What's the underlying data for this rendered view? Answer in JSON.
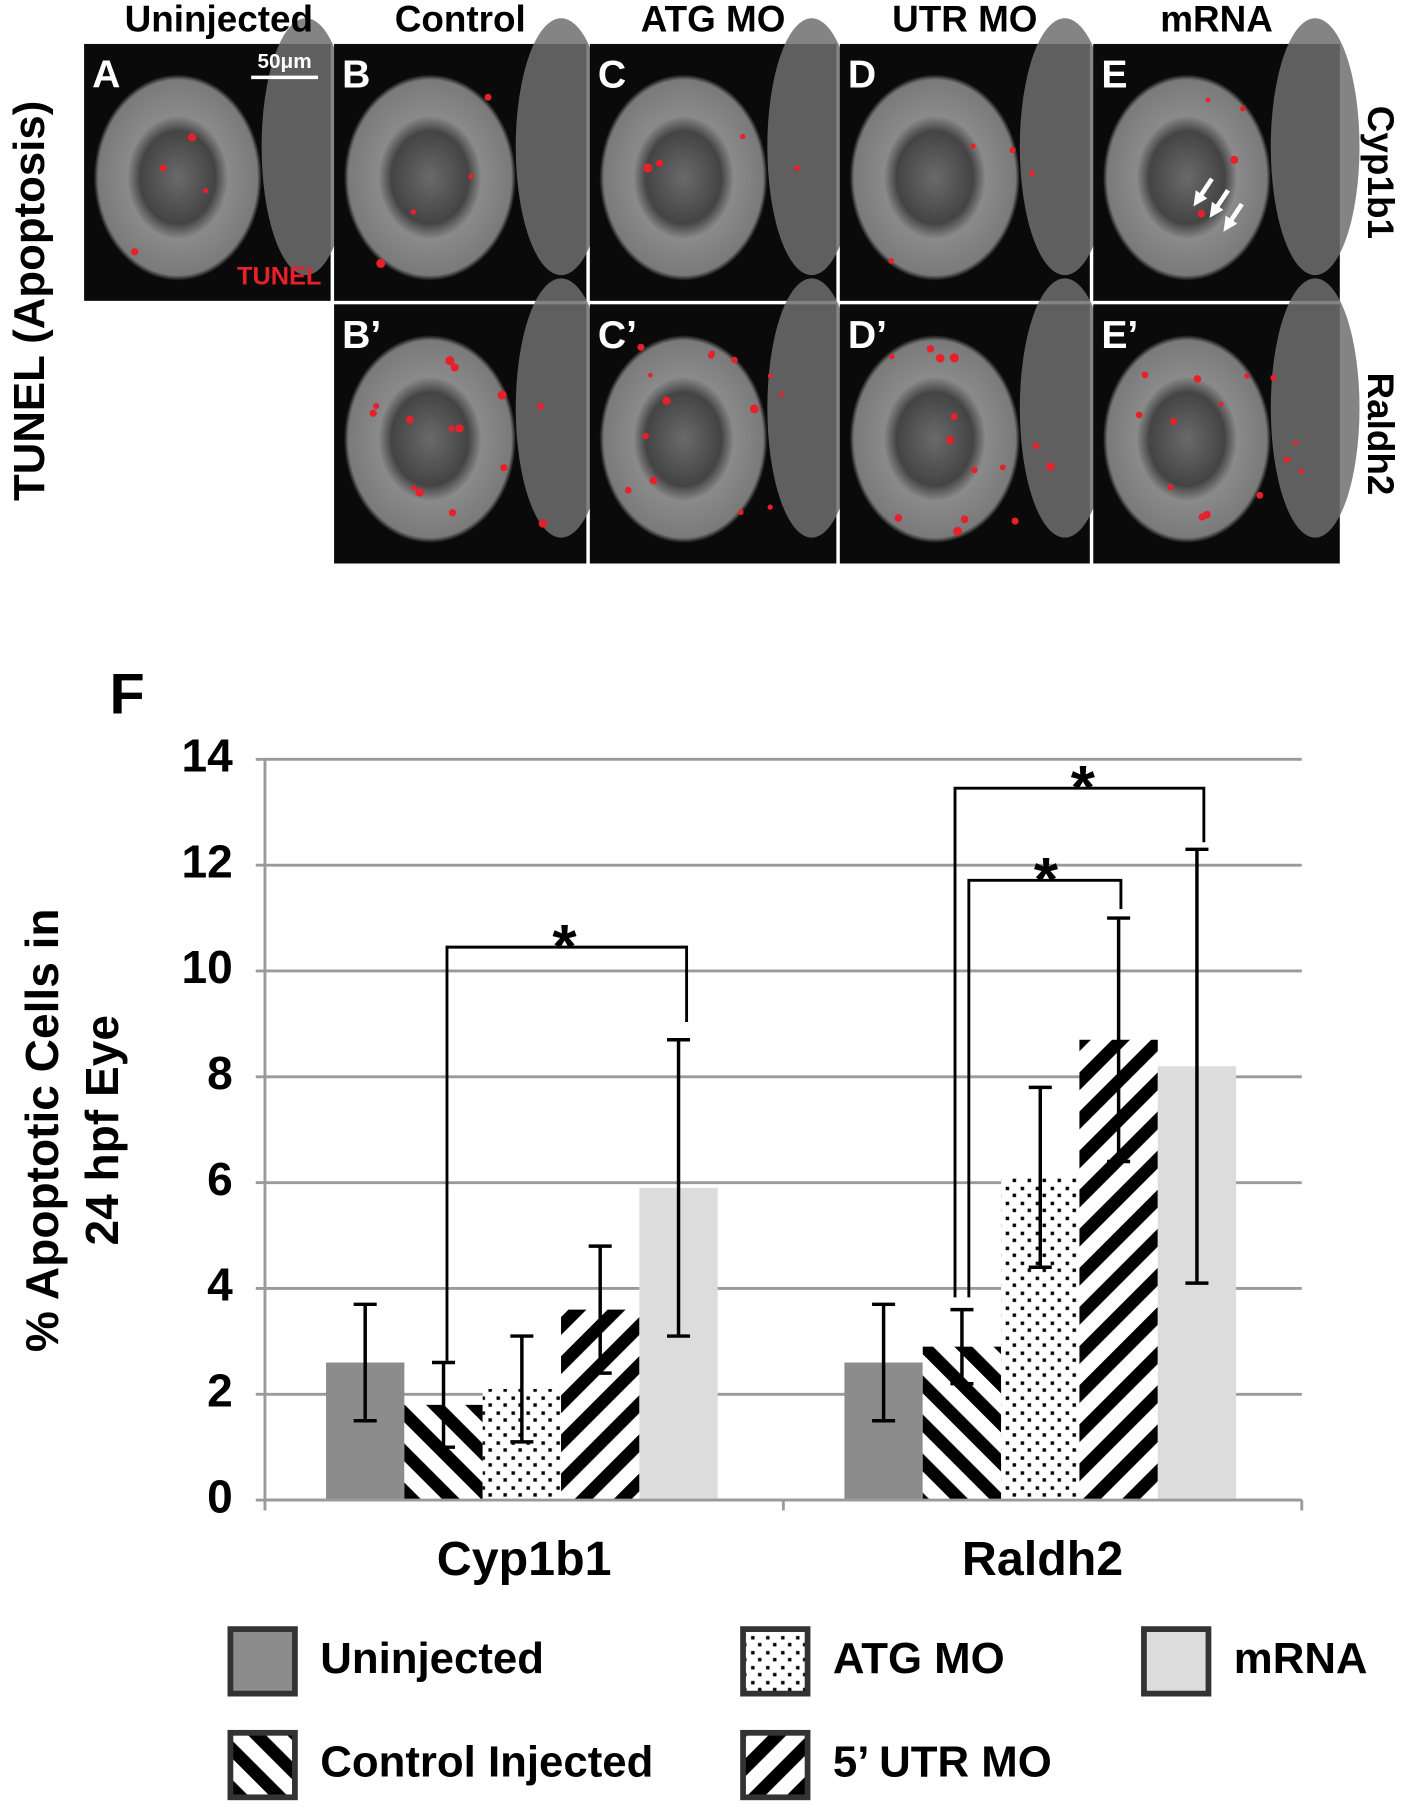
{
  "figure": {
    "side_label": "TUNEL (Apoptosis)",
    "columns": [
      "Uninjected",
      "Control",
      "ATG MO",
      "UTR MO",
      "mRNA"
    ],
    "rows": [
      "Cyp1b1",
      "Raldh2"
    ],
    "panels": [
      "A",
      "B",
      "C",
      "D",
      "E",
      "B’",
      "C’",
      "D’",
      "E’"
    ],
    "scale_bar": "50μm",
    "stain": "TUNEL",
    "chart_label": "F"
  },
  "chart_data": {
    "type": "bar",
    "ylabel": [
      "% Apoptotic Cells in",
      "24 hpf Eye"
    ],
    "categories": [
      "Cyp1b1",
      "Raldh2"
    ],
    "series": [
      {
        "name": "Uninjected",
        "color": "#8c8c8c",
        "pattern": "solid",
        "values": [
          2.6,
          2.6
        ],
        "errors": [
          1.1,
          1.1
        ]
      },
      {
        "name": "Control Injected",
        "color": "#000000",
        "pattern": "backslash",
        "values": [
          1.8,
          2.9
        ],
        "errors": [
          0.8,
          0.7
        ]
      },
      {
        "name": "ATG MO",
        "color": "#000000",
        "pattern": "dots",
        "values": [
          2.1,
          6.1
        ],
        "errors": [
          1.0,
          1.7
        ]
      },
      {
        "name": "5’ UTR MO",
        "color": "#000000",
        "pattern": "slash",
        "values": [
          3.6,
          8.7
        ],
        "errors": [
          1.2,
          2.3
        ]
      },
      {
        "name": "mRNA",
        "color": "#dcdcdc",
        "pattern": "solid",
        "values": [
          5.9,
          8.2
        ],
        "errors": [
          2.8,
          4.1
        ]
      }
    ],
    "ylim": [
      0,
      14
    ],
    "yticks": [
      0,
      2,
      4,
      6,
      8,
      10,
      12,
      14
    ],
    "grid": true,
    "annotations": [
      "*",
      "*",
      "*"
    ]
  }
}
